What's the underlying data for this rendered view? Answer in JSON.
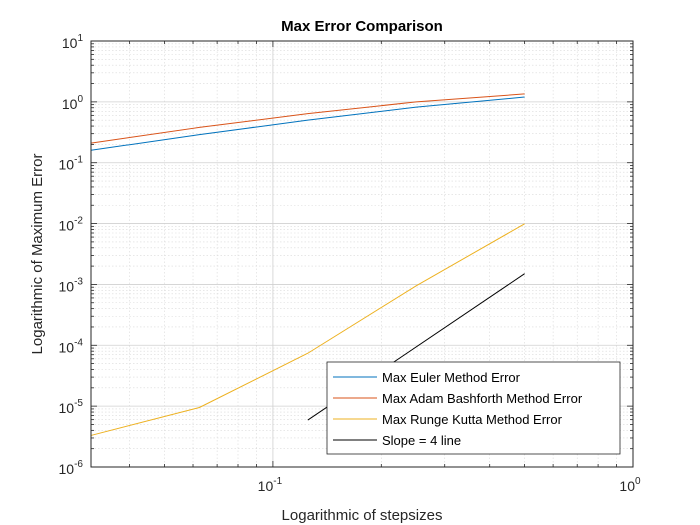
{
  "chart_data": {
    "type": "line",
    "title": "Max Error Comparison",
    "xlabel": "Logarithmic of stepsizes",
    "ylabel": "Logarithmic of Maximum Error",
    "xscale": "log",
    "yscale": "log",
    "xlim": [
      0.03125,
      1
    ],
    "ylim": [
      1e-06,
      10
    ],
    "xticks": [
      {
        "value": 0.1,
        "base": "10",
        "exp": "-1"
      },
      {
        "value": 1,
        "base": "10",
        "exp": "0"
      }
    ],
    "yticks": [
      {
        "value": 1e-06,
        "base": "10",
        "exp": "-6"
      },
      {
        "value": 1e-05,
        "base": "10",
        "exp": "-5"
      },
      {
        "value": 0.0001,
        "base": "10",
        "exp": "-4"
      },
      {
        "value": 0.001,
        "base": "10",
        "exp": "-3"
      },
      {
        "value": 0.01,
        "base": "10",
        "exp": "-2"
      },
      {
        "value": 0.1,
        "base": "10",
        "exp": "-1"
      },
      {
        "value": 1,
        "base": "10",
        "exp": "0"
      },
      {
        "value": 10,
        "base": "10",
        "exp": "1"
      }
    ],
    "grid": true,
    "minor_grid": true,
    "legend_position": "bottom-right",
    "series": [
      {
        "name": "Max Euler Method Error",
        "color": "#0072BD",
        "x": [
          0.03125,
          0.0625,
          0.125,
          0.25,
          0.5
        ],
        "y": [
          0.16,
          0.29,
          0.5,
          0.82,
          1.2
        ]
      },
      {
        "name": "Max Adam Bashforth Method Error",
        "color": "#D95319",
        "x": [
          0.03125,
          0.0625,
          0.125,
          0.25,
          0.5
        ],
        "y": [
          0.21,
          0.38,
          0.64,
          1.0,
          1.35
        ]
      },
      {
        "name": "Max Runge Kutta Method Error",
        "color": "#EDB120",
        "x": [
          0.03125,
          0.0625,
          0.125,
          0.25,
          0.5
        ],
        "y": [
          3.3e-06,
          9.5e-06,
          7.4e-05,
          0.00095,
          0.0099
        ]
      },
      {
        "name": "Slope = 4 line",
        "color": "#000000",
        "x": [
          0.125,
          0.5
        ],
        "y": [
          5.9e-06,
          0.0015
        ]
      }
    ]
  }
}
